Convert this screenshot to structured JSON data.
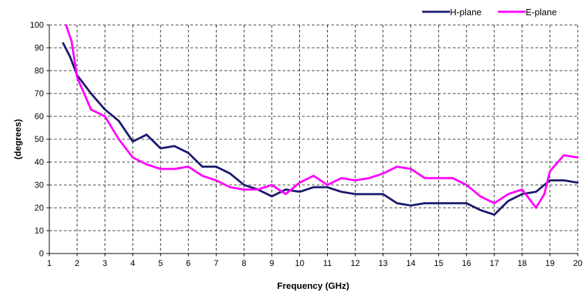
{
  "chart_data": {
    "type": "line",
    "title": "",
    "xlabel": "Frequency (GHz)",
    "ylabel": "(degrees)",
    "xlim": [
      1,
      20
    ],
    "ylim": [
      0,
      100
    ],
    "x_ticks": [
      1,
      2,
      3,
      4,
      5,
      6,
      7,
      8,
      9,
      10,
      11,
      12,
      13,
      14,
      15,
      16,
      17,
      18,
      19,
      20
    ],
    "y_ticks": [
      0,
      10,
      20,
      30,
      40,
      50,
      60,
      70,
      80,
      90,
      100
    ],
    "grid": "dashed",
    "legend_position": "top-right",
    "series": [
      {
        "name": "H-plane",
        "color": "#1a1a6e",
        "points": [
          [
            1.5,
            92
          ],
          [
            1.75,
            86
          ],
          [
            2,
            78
          ],
          [
            2.5,
            70
          ],
          [
            3,
            63
          ],
          [
            3.5,
            58
          ],
          [
            4,
            49
          ],
          [
            4.5,
            52
          ],
          [
            5,
            46
          ],
          [
            5.5,
            47
          ],
          [
            6,
            44
          ],
          [
            6.5,
            38
          ],
          [
            7,
            38
          ],
          [
            7.5,
            35
          ],
          [
            8,
            30
          ],
          [
            8.5,
            28
          ],
          [
            9,
            25
          ],
          [
            9.5,
            28
          ],
          [
            10,
            27
          ],
          [
            10.5,
            29
          ],
          [
            11,
            29
          ],
          [
            11.5,
            27
          ],
          [
            12,
            26
          ],
          [
            12.5,
            26
          ],
          [
            13,
            26
          ],
          [
            13.5,
            22
          ],
          [
            14,
            21
          ],
          [
            14.5,
            22
          ],
          [
            15,
            22
          ],
          [
            15.5,
            22
          ],
          [
            16,
            22
          ],
          [
            16.5,
            19
          ],
          [
            17,
            17
          ],
          [
            17.5,
            23
          ],
          [
            18,
            26
          ],
          [
            18.5,
            27
          ],
          [
            19,
            32
          ],
          [
            19.5,
            32
          ],
          [
            20,
            31
          ]
        ]
      },
      {
        "name": "E-plane",
        "color": "#ff00ff",
        "points": [
          [
            1.6,
            100
          ],
          [
            1.8,
            93
          ],
          [
            2,
            77
          ],
          [
            2.5,
            63
          ],
          [
            3,
            60
          ],
          [
            3.5,
            50
          ],
          [
            4,
            42
          ],
          [
            4.5,
            39
          ],
          [
            5,
            37
          ],
          [
            5.5,
            37
          ],
          [
            6,
            38
          ],
          [
            6.5,
            34
          ],
          [
            7,
            32
          ],
          [
            7.5,
            29
          ],
          [
            8,
            28
          ],
          [
            8.5,
            28
          ],
          [
            9,
            30
          ],
          [
            9.5,
            26
          ],
          [
            10,
            31
          ],
          [
            10.5,
            34
          ],
          [
            11,
            30
          ],
          [
            11.5,
            33
          ],
          [
            12,
            32
          ],
          [
            12.5,
            33
          ],
          [
            13,
            35
          ],
          [
            13.5,
            38
          ],
          [
            14,
            37
          ],
          [
            14.5,
            33
          ],
          [
            15,
            33
          ],
          [
            15.5,
            33
          ],
          [
            16,
            30
          ],
          [
            16.5,
            25
          ],
          [
            17,
            22
          ],
          [
            17.5,
            26
          ],
          [
            18,
            28
          ],
          [
            18.5,
            20
          ],
          [
            18.8,
            26
          ],
          [
            19,
            36
          ],
          [
            19.5,
            43
          ],
          [
            20,
            42
          ]
        ]
      }
    ]
  }
}
